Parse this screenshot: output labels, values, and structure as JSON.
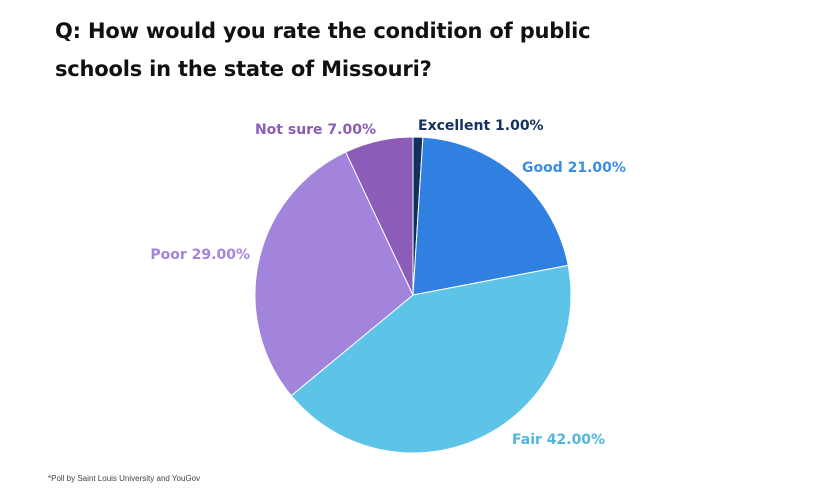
{
  "title_lines": [
    "Q: How would you rate the condition of  public",
    "schools in the state of Missouri?"
  ],
  "footnote": "*Poll by Saint Louis University and YouGov",
  "chart_data": {
    "type": "pie",
    "title": "Q: How would you rate the condition of  public schools in the state of Missouri?",
    "slices": [
      {
        "name": "Excellent",
        "value": 1.0,
        "label": "Excellent 1.00%",
        "color": "#14305e",
        "label_color": "#14305e"
      },
      {
        "name": "Good",
        "value": 21.0,
        "label": "Good 21.00%",
        "color": "#2f80e0",
        "label_color": "#3a8ee6"
      },
      {
        "name": "Fair",
        "value": 42.0,
        "label": "Fair 42.00%",
        "color": "#5ec4e7",
        "label_color": "#4fb6e0"
      },
      {
        "name": "Poor",
        "value": 29.0,
        "label": "Poor 29.00%",
        "color": "#a384dd",
        "label_color": "#a384dd"
      },
      {
        "name": "Not sure",
        "value": 7.0,
        "label": "Not sure 7.00%",
        "color": "#8b5cb8",
        "label_color": "#8b5cb8"
      }
    ],
    "start": "top",
    "direction": "clockwise"
  }
}
